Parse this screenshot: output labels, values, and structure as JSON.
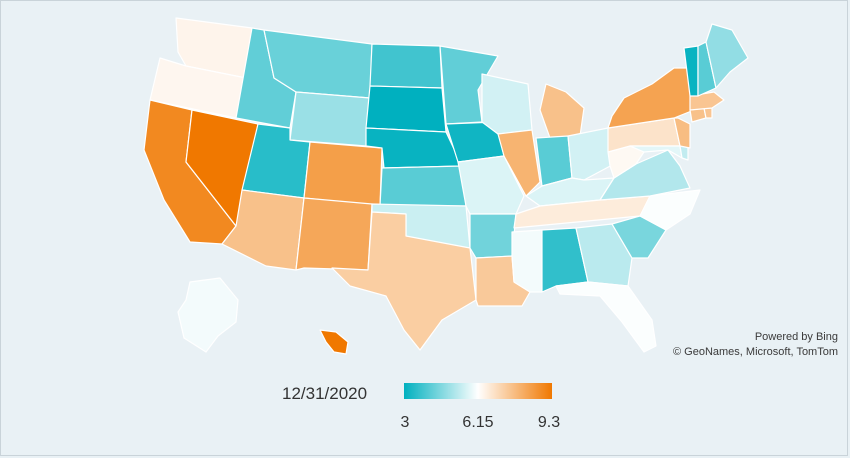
{
  "map": {
    "date": "12/31/2020",
    "scale": {
      "min": 3,
      "mid": 6.15,
      "max": 9.3,
      "min_label": "3",
      "mid_label": "6.15",
      "max_label": "9.3"
    },
    "colors": {
      "low": "#00b0bf",
      "mid": "#ffffff",
      "high": "#f07800",
      "background": "#e9f1f5"
    },
    "attribution": {
      "line1": "Powered by Bing",
      "line2": "© GeoNames, Microsoft, TomTom"
    },
    "states": {
      "WA": 6.4,
      "OR": 6.35,
      "CA": 8.9,
      "NV": 9.3,
      "ID": 4.2,
      "MT": 4.3,
      "WY": 4.9,
      "UT": 3.5,
      "AZ": 7.6,
      "CO": 8.4,
      "NM": 8.2,
      "ND": 3.8,
      "SD": 3.0,
      "NE": 3.1,
      "KS": 4.1,
      "OK": 5.5,
      "TX": 7.3,
      "MN": 4.2,
      "IA": 3.2,
      "MO": 5.7,
      "AR": 4.4,
      "LA": 7.4,
      "WI": 5.6,
      "IL": 7.9,
      "MI": 7.6,
      "IN": 4.1,
      "OH": 5.6,
      "KY": 5.7,
      "TN": 6.6,
      "MS": 6.0,
      "AL": 3.6,
      "GA": 5.3,
      "FL": 6.1,
      "SC": 4.5,
      "NC": 6.1,
      "VA": 5.2,
      "WV": 6.3,
      "PA": 6.8,
      "NY": 8.3,
      "VT": 3.1,
      "NH": 4.1,
      "ME": 4.8,
      "MA": 7.5,
      "CT": 7.6,
      "RI": 7.5,
      "NJ": 7.7,
      "DE": 5.4,
      "MD": 5.8,
      "AK": 6.0,
      "HI": 9.3
    }
  }
}
